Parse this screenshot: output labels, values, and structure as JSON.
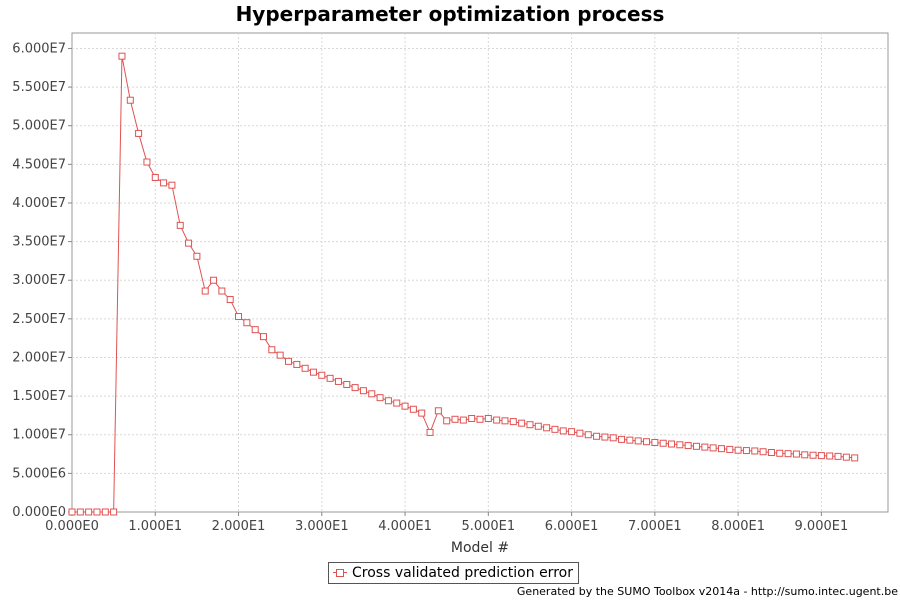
{
  "chart_data": {
    "type": "line",
    "title": "Hyperparameter optimization process",
    "xlabel": "Model #",
    "ylabel": "",
    "xlim": [
      0,
      98
    ],
    "ylim": [
      0,
      62000000
    ],
    "x_ticks": [
      0,
      10,
      20,
      30,
      40,
      50,
      60,
      70,
      80,
      90
    ],
    "x_tick_labels": [
      "0.000E0",
      "1.000E1",
      "2.000E1",
      "3.000E1",
      "4.000E1",
      "5.000E1",
      "6.000E1",
      "7.000E1",
      "8.000E1",
      "9.000E1"
    ],
    "y_ticks": [
      0,
      5000000,
      10000000,
      15000000,
      20000000,
      25000000,
      30000000,
      35000000,
      40000000,
      45000000,
      50000000,
      55000000,
      60000000
    ],
    "y_tick_labels": [
      "0.000E0",
      "5.000E6",
      "1.000E7",
      "1.500E7",
      "2.000E7",
      "2.500E7",
      "3.000E7",
      "3.500E7",
      "4.000E7",
      "4.500E7",
      "5.000E7",
      "5.500E7",
      "6.000E7"
    ],
    "grid": true,
    "legend_position": "bottom-center",
    "series": [
      {
        "name": "Cross validated prediction error",
        "color": "#e05252",
        "marker": "square",
        "x": [
          0,
          1,
          2,
          3,
          4,
          5,
          6,
          7,
          8,
          9,
          10,
          11,
          12,
          13,
          14,
          15,
          16,
          17,
          18,
          19,
          20,
          21,
          22,
          23,
          24,
          25,
          26,
          27,
          28,
          29,
          30,
          31,
          32,
          33,
          34,
          35,
          36,
          37,
          38,
          39,
          40,
          41,
          42,
          43,
          44,
          45,
          46,
          47,
          48,
          49,
          50,
          51,
          52,
          53,
          54,
          55,
          56,
          57,
          58,
          59,
          60,
          61,
          62,
          63,
          64,
          65,
          66,
          67,
          68,
          69,
          70,
          71,
          72,
          73,
          74,
          75,
          76,
          77,
          78,
          79,
          80,
          81,
          82,
          83,
          84,
          85,
          86,
          87,
          88,
          89,
          90,
          91,
          92,
          93,
          94
        ],
        "values": [
          0,
          0,
          0,
          0,
          0,
          0,
          59000000,
          53300000,
          49000000,
          45300000,
          43300000,
          42600000,
          42300000,
          37100000,
          34800000,
          33100000,
          28600000,
          30000000,
          28600000,
          27500000,
          25300000,
          24500000,
          23600000,
          22700000,
          21000000,
          20300000,
          19500000,
          19100000,
          18600000,
          18100000,
          17700000,
          17300000,
          16900000,
          16500000,
          16100000,
          15700000,
          15300000,
          14800000,
          14400000,
          14100000,
          13700000,
          13300000,
          12800000,
          10300000,
          13100000,
          11800000,
          12000000,
          11900000,
          12100000,
          12000000,
          12100000,
          11900000,
          11800000,
          11700000,
          11500000,
          11300000,
          11100000,
          10900000,
          10700000,
          10500000,
          10400000,
          10200000,
          10000000,
          9800000,
          9700000,
          9600000,
          9400000,
          9300000,
          9200000,
          9100000,
          9000000,
          8900000,
          8800000,
          8700000,
          8600000,
          8500000,
          8400000,
          8300000,
          8200000,
          8100000,
          8000000,
          7950000,
          7900000,
          7800000,
          7700000,
          7600000,
          7550000,
          7500000,
          7400000,
          7350000,
          7300000,
          7250000,
          7200000,
          7100000,
          7000000
        ]
      }
    ]
  },
  "footer_text": "Generated by the SUMO Toolbox v2014a - http://sumo.intec.ugent.be"
}
